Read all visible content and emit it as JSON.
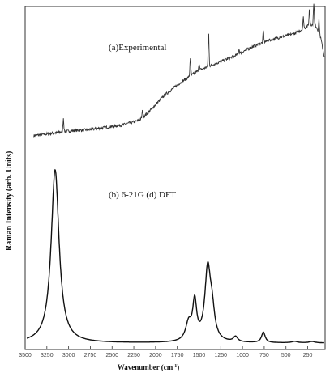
{
  "chart_data": {
    "type": "line",
    "xlabel": "Wavenumber (cm",
    "xlabel_sup": "-1",
    "xlabel_tail": ")",
    "ylabel": "Raman  Intensity (arb. Units)",
    "x_reversed": true,
    "xlim": [
      3500,
      50
    ],
    "x_ticks": [
      3500,
      3250,
      3000,
      2750,
      2500,
      2250,
      2000,
      1750,
      1500,
      1250,
      1000,
      750,
      500,
      250
    ],
    "x_tick_labels": [
      "3500",
      "3250",
      "3000",
      "2750",
      "2500",
      "2250",
      "2000",
      "1750",
      "1500",
      "1250",
      "1000",
      "750",
      "500",
      "250"
    ],
    "series": [
      {
        "name": "(a)Experimental",
        "baseline": [
          [
            3400,
            0.03
          ],
          [
            3200,
            0.05
          ],
          [
            3000,
            0.07
          ],
          [
            2800,
            0.08
          ],
          [
            2600,
            0.1
          ],
          [
            2400,
            0.12
          ],
          [
            2200,
            0.16
          ],
          [
            2100,
            0.22
          ],
          [
            2000,
            0.3
          ],
          [
            1900,
            0.38
          ],
          [
            1800,
            0.44
          ],
          [
            1700,
            0.5
          ],
          [
            1600,
            0.55
          ],
          [
            1500,
            0.6
          ],
          [
            1400,
            0.63
          ],
          [
            1300,
            0.66
          ],
          [
            1200,
            0.69
          ],
          [
            1100,
            0.72
          ],
          [
            1000,
            0.76
          ],
          [
            900,
            0.8
          ],
          [
            800,
            0.83
          ],
          [
            700,
            0.86
          ],
          [
            600,
            0.88
          ],
          [
            500,
            0.9
          ],
          [
            400,
            0.92
          ],
          [
            300,
            0.96
          ],
          [
            220,
            1.0
          ],
          [
            150,
            0.98
          ],
          [
            100,
            0.88
          ],
          [
            60,
            0.72
          ]
        ],
        "peaks": [
          [
            3060,
            0.12
          ],
          [
            2150,
            0.06
          ],
          [
            1600,
            0.16
          ],
          [
            1500,
            0.06
          ],
          [
            1390,
            0.3
          ],
          [
            1040,
            0.04
          ],
          [
            760,
            0.1
          ],
          [
            300,
            0.1
          ],
          [
            230,
            0.14
          ],
          [
            180,
            0.2
          ],
          [
            120,
            0.12
          ]
        ]
      },
      {
        "name": "(b) 6-21G (d) DFT",
        "baseline": 0.0,
        "peaks": [
          [
            3155,
            1.0,
            55
          ],
          [
            1620,
            0.1,
            40
          ],
          [
            1550,
            0.22,
            28
          ],
          [
            1400,
            0.41,
            40
          ],
          [
            1350,
            0.14,
            35
          ],
          [
            1080,
            0.03,
            30
          ],
          [
            760,
            0.06,
            25
          ],
          [
            400,
            0.008,
            40
          ],
          [
            200,
            0.008,
            40
          ]
        ]
      }
    ]
  }
}
